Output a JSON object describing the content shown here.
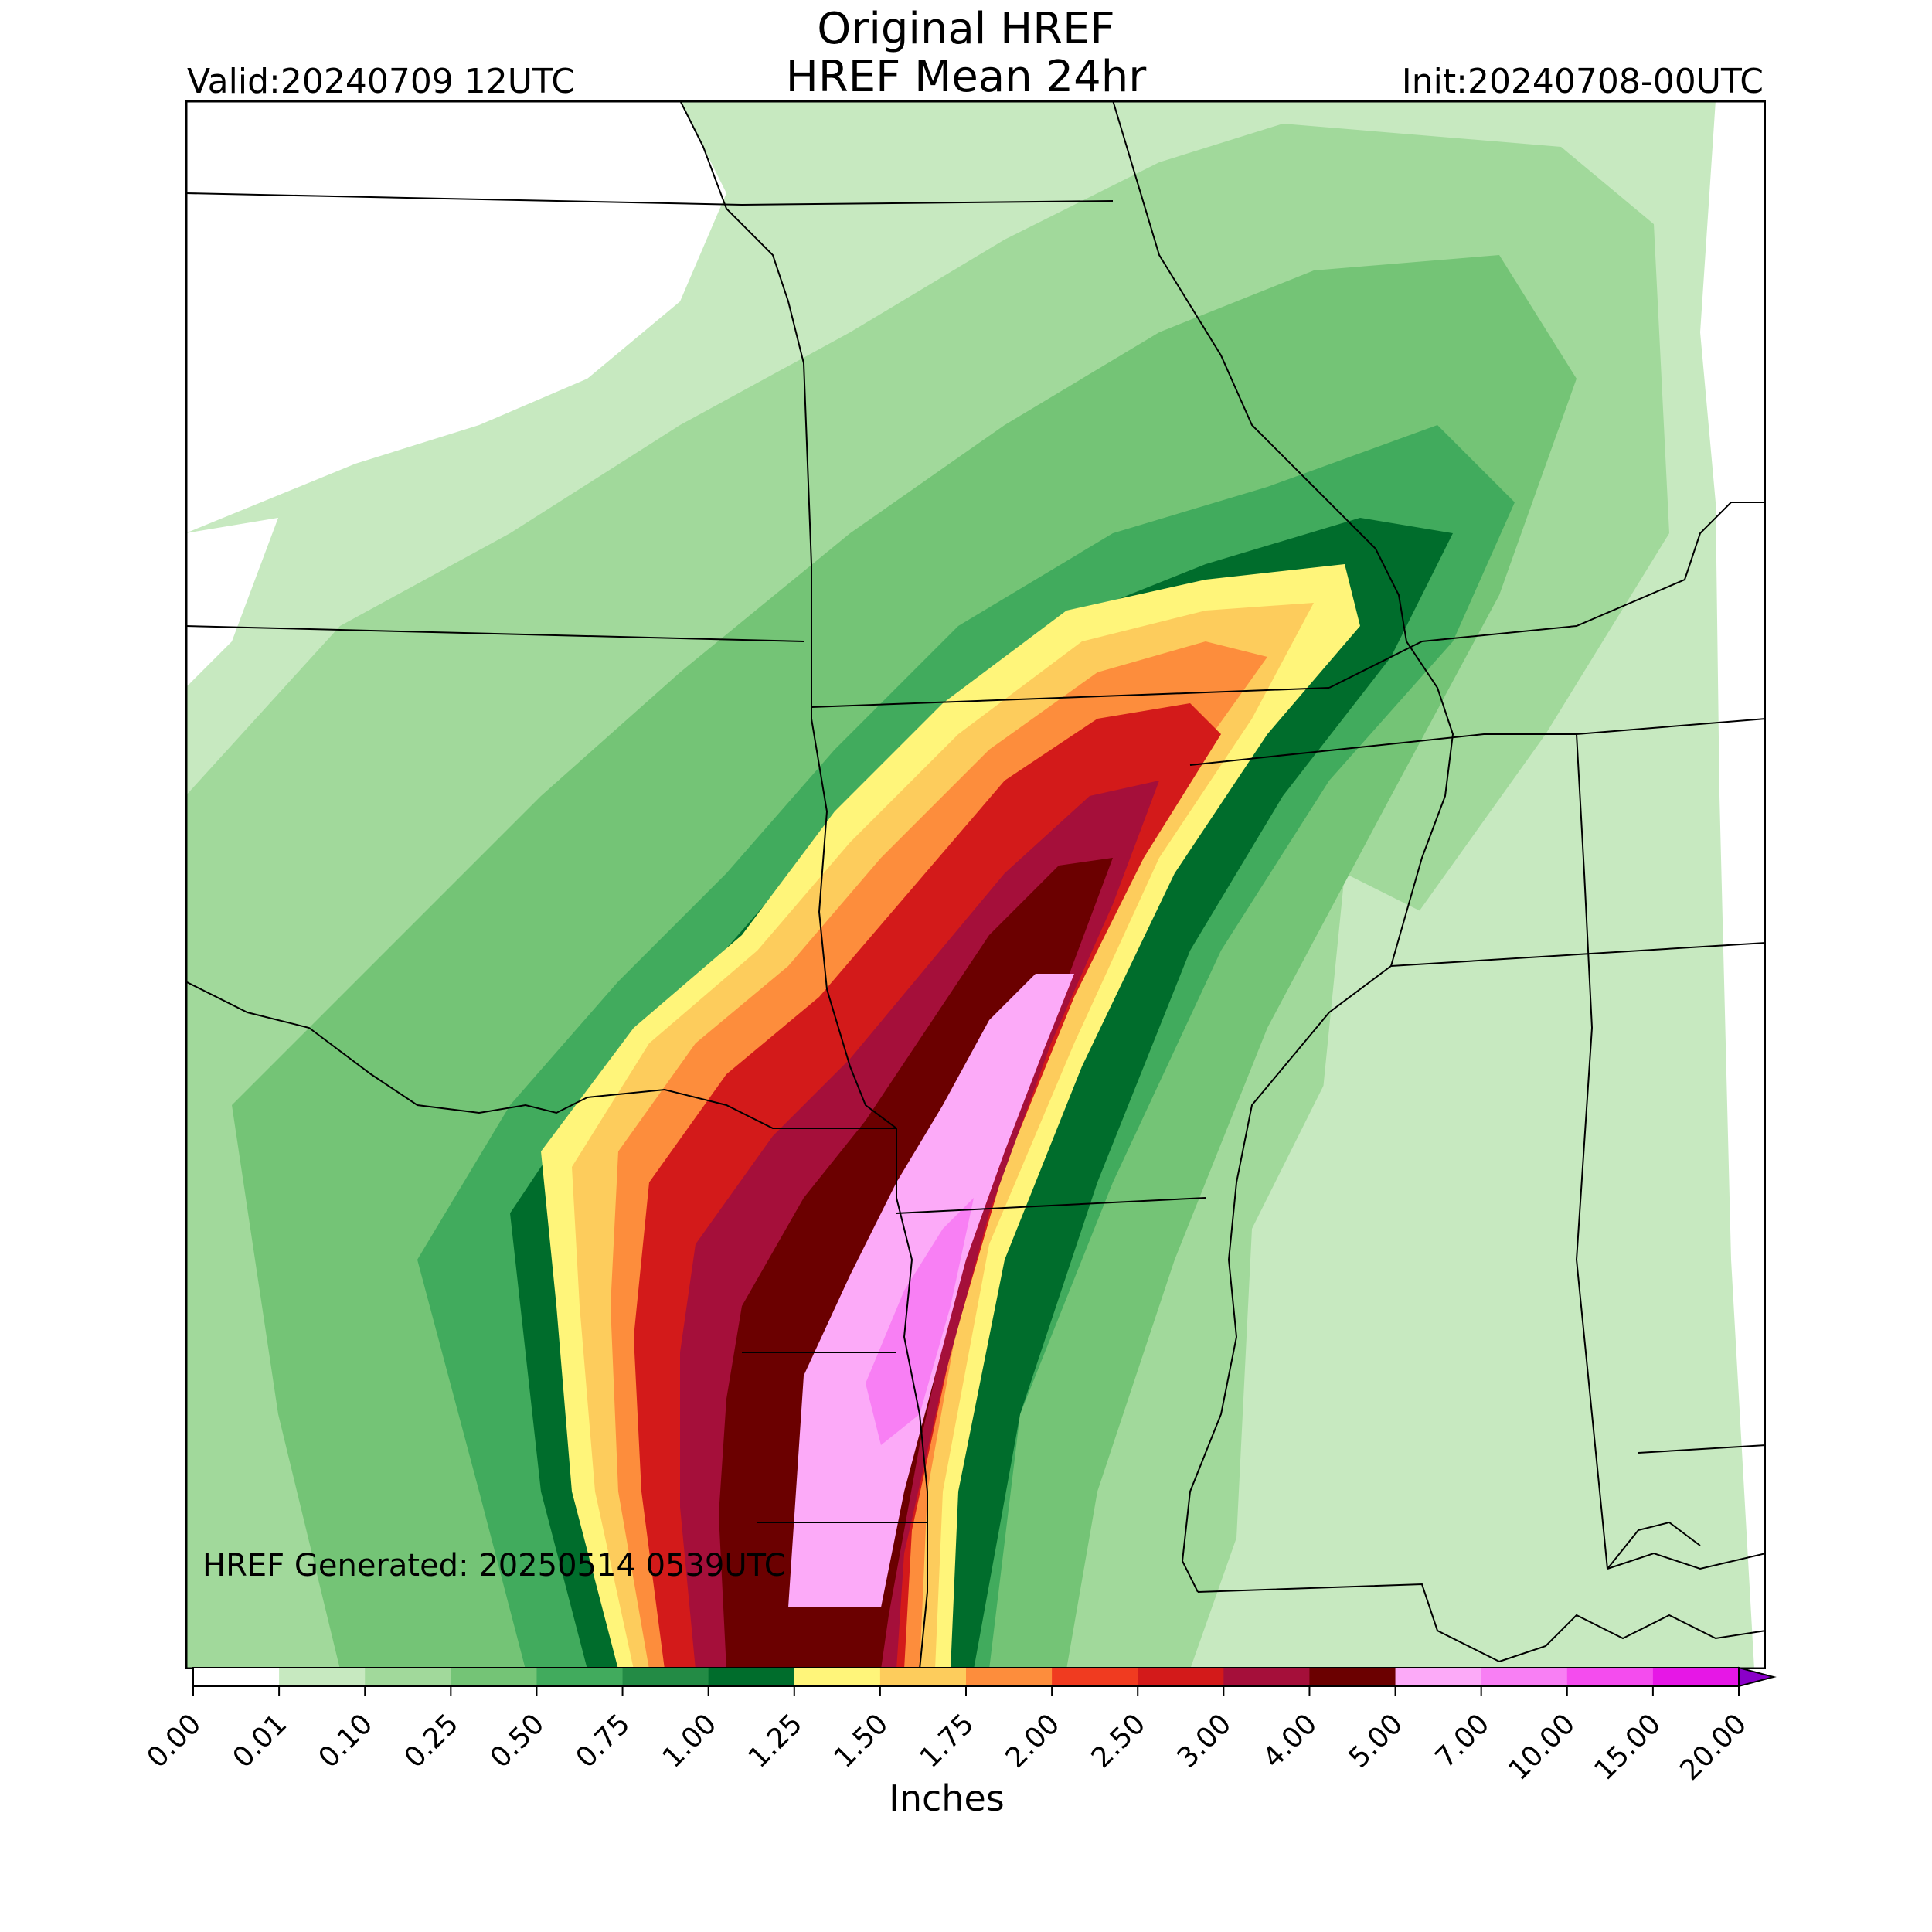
{
  "header": {
    "title_line_1": "Original HREF",
    "title_line_2": "HREF Mean 24hr",
    "valid": "Valid:20240709 12UTC",
    "init": "Init:20240708-00UTC"
  },
  "map": {
    "generated": "HREF Generated: 20250514 0539UTC"
  },
  "colorbar": {
    "units": "Inches",
    "ticks": [
      "0.00",
      "0.01",
      "0.10",
      "0.25",
      "0.50",
      "0.75",
      "1.00",
      "1.25",
      "1.50",
      "1.75",
      "2.00",
      "2.50",
      "3.00",
      "4.00",
      "5.00",
      "7.00",
      "10.00",
      "15.00",
      "20.00"
    ],
    "colors": [
      "#ffffff",
      "#c7e9c0",
      "#a1d99b",
      "#74c476",
      "#41ab5d",
      "#238b45",
      "#006d2c",
      "#fff57a",
      "#fdcc5c",
      "#fd8d3c",
      "#f03b20",
      "#d31a1a",
      "#a50f3a",
      "#6b0000",
      "#fcaaf8",
      "#f87ff4",
      "#f44cee",
      "#e617e6",
      "#a800d6"
    ],
    "extend_color": "#8a00c8"
  }
}
